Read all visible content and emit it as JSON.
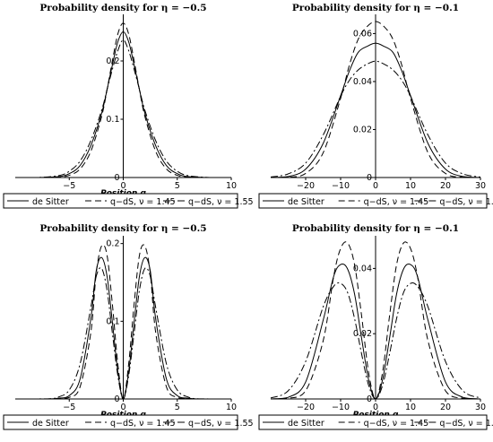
{
  "chart_data": [
    {
      "type": "line",
      "title": "Probability density for η = −0.5",
      "xlabel": "Position q",
      "xlim": [
        -10,
        10
      ],
      "ylim": [
        0,
        0.28
      ],
      "xticks": [
        "−5",
        "0",
        "5",
        "10"
      ],
      "xtick_values": [
        -5,
        0,
        5,
        10
      ],
      "yticks": [
        "0",
        "0.1",
        "0.2"
      ],
      "ytick_values": [
        0,
        0.1,
        0.2
      ],
      "series": [
        {
          "name": "de Sitter",
          "style": "solid",
          "x": [
            -10,
            -8,
            -6,
            -5,
            -4,
            -3,
            -2,
            -1.5,
            -1,
            -0.5,
            0,
            0.5,
            1,
            1.5,
            2,
            3,
            4,
            5,
            6,
            8,
            10
          ],
          "y": [
            0,
            0,
            0.0015,
            0.0066,
            0.0205,
            0.0548,
            0.1104,
            0.1508,
            0.1937,
            0.2329,
            0.25,
            0.2329,
            0.1937,
            0.1508,
            0.1104,
            0.0548,
            0.0205,
            0.0066,
            0.0015,
            0,
            0
          ]
        },
        {
          "name": "q−dS, ν = 1.45",
          "style": "dash",
          "x": [
            -10,
            -8,
            -6,
            -5,
            -4,
            -3,
            -2,
            -1.5,
            -1,
            -0.5,
            0,
            0.5,
            1,
            1.5,
            2,
            3,
            4,
            5,
            6,
            8,
            10
          ],
          "y": [
            0,
            0,
            0.0006,
            0.0037,
            0.0146,
            0.0451,
            0.1051,
            0.1505,
            0.2008,
            0.2463,
            0.265,
            0.2463,
            0.2008,
            0.1505,
            0.1051,
            0.0451,
            0.0146,
            0.0037,
            0.0006,
            0,
            0
          ]
        },
        {
          "name": "q−dS, ν = 1.55",
          "style": "dashdot",
          "x": [
            -10,
            -8,
            -6,
            -5,
            -4,
            -3,
            -2,
            -1.5,
            -1,
            -0.5,
            0,
            0.5,
            1,
            1.5,
            2,
            3,
            4,
            5,
            6,
            8,
            10
          ],
          "y": [
            0,
            0,
            0.0032,
            0.0107,
            0.0281,
            0.0633,
            0.1156,
            0.1509,
            0.186,
            0.2177,
            0.236,
            0.2177,
            0.186,
            0.1509,
            0.1156,
            0.0633,
            0.0281,
            0.0107,
            0.0032,
            0,
            0
          ]
        }
      ]
    },
    {
      "type": "line",
      "title": "Probability density for η = −0.1",
      "xlabel": "",
      "xlim": [
        -30,
        30
      ],
      "ylim": [
        0,
        0.068
      ],
      "xticks": [
        "−20",
        "−10",
        "0",
        "10",
        "20",
        "30"
      ],
      "xtick_values": [
        -20,
        -10,
        0,
        10,
        20,
        30
      ],
      "yticks": [
        "0",
        "0.02",
        "0.04",
        "0.06"
      ],
      "ytick_values": [
        0,
        0.02,
        0.04,
        0.06
      ],
      "series": [
        {
          "name": "de Sitter",
          "style": "solid",
          "x": [
            -30,
            -25,
            -20,
            -15,
            -10,
            -7.5,
            -5,
            -2.5,
            0,
            2.5,
            5,
            7.5,
            10,
            15,
            20,
            25,
            30
          ],
          "y": [
            0,
            0.0004,
            0.0035,
            0.0142,
            0.0341,
            0.0444,
            0.0521,
            0.0546,
            0.056,
            0.0546,
            0.0521,
            0.0444,
            0.0341,
            0.0142,
            0.0035,
            0.0004,
            0
          ]
        },
        {
          "name": "q−dS, ν = 1.45",
          "style": "dash",
          "x": [
            -30,
            -25,
            -20,
            -15,
            -10,
            -7.5,
            -5,
            -2.5,
            0,
            2.5,
            5,
            7.5,
            10,
            15,
            20,
            25,
            30
          ],
          "y": [
            0,
            0.0001,
            0.0017,
            0.0103,
            0.033,
            0.0468,
            0.0575,
            0.0628,
            0.065,
            0.0628,
            0.0575,
            0.0468,
            0.033,
            0.0103,
            0.0017,
            0.0001,
            0
          ]
        },
        {
          "name": "q−dS, ν = 1.55",
          "style": "dashdot",
          "x": [
            -30,
            -25,
            -20,
            -15,
            -10,
            -7.5,
            -5,
            -2.5,
            0,
            2.5,
            5,
            7.5,
            10,
            15,
            20,
            25,
            30
          ],
          "y": [
            0.0002,
            0.0015,
            0.006,
            0.0177,
            0.0339,
            0.0405,
            0.0448,
            0.0472,
            0.0485,
            0.0472,
            0.0448,
            0.0405,
            0.0339,
            0.0177,
            0.006,
            0.0015,
            0.0002
          ]
        }
      ]
    },
    {
      "type": "line",
      "title": "Probability density for η = −0.5",
      "xlabel": "Position q",
      "xlim": [
        -10,
        10
      ],
      "ylim": [
        0,
        0.21
      ],
      "xticks": [
        "−5",
        "0",
        "5",
        "10"
      ],
      "xtick_values": [
        -5,
        0,
        5,
        10
      ],
      "yticks": [
        "0",
        "0.1",
        "0.2"
      ],
      "ytick_values": [
        0,
        0.1,
        0.2
      ],
      "series": [
        {
          "name": "de Sitter",
          "style": "solid",
          "x": [
            -10,
            -7,
            -6,
            -5,
            -4,
            -3,
            -2.5,
            -2,
            -1.5,
            -1,
            -0.5,
            0,
            0.5,
            1,
            1.5,
            2,
            2.5,
            3,
            4,
            5,
            6,
            7,
            10
          ],
          "y": [
            0,
            0,
            0.001,
            0.0043,
            0.0255,
            0.1035,
            0.165,
            0.182,
            0.158,
            0.098,
            0.035,
            0,
            0.035,
            0.098,
            0.158,
            0.182,
            0.165,
            0.1035,
            0.0255,
            0.0043,
            0.001,
            0,
            0
          ]
        },
        {
          "name": "q−dS, ν = 1.45",
          "style": "dash",
          "x": [
            -10,
            -7,
            -6,
            -5,
            -4,
            -3,
            -2.5,
            -2,
            -1.5,
            -1,
            -0.5,
            0,
            0.5,
            1,
            1.5,
            2,
            2.5,
            3,
            4,
            5,
            6,
            7,
            10
          ],
          "y": [
            0,
            0,
            0.0004,
            0.002,
            0.0155,
            0.0857,
            0.162,
            0.197,
            0.185,
            0.121,
            0.045,
            0,
            0.045,
            0.121,
            0.185,
            0.197,
            0.162,
            0.0857,
            0.0155,
            0.002,
            0.0004,
            0,
            0
          ]
        },
        {
          "name": "q−dS, ν = 1.55",
          "style": "dashdot",
          "x": [
            -10,
            -7,
            -6,
            -5,
            -4,
            -3,
            -2.5,
            -2,
            -1.5,
            -1,
            -0.5,
            0,
            0.5,
            1,
            1.5,
            2,
            2.5,
            3,
            4,
            5,
            6,
            7,
            10
          ],
          "y": [
            0,
            0.0002,
            0.0025,
            0.0115,
            0.045,
            0.118,
            0.158,
            0.168,
            0.14,
            0.084,
            0.03,
            0,
            0.03,
            0.084,
            0.14,
            0.168,
            0.158,
            0.118,
            0.045,
            0.0115,
            0.0025,
            0.0002,
            0
          ]
        }
      ]
    },
    {
      "type": "line",
      "title": "Probability density for η = −0.1",
      "xlabel": "Position q",
      "xlim": [
        -30,
        30
      ],
      "ylim": [
        0,
        0.05
      ],
      "xticks": [
        "−20",
        "−10",
        "0",
        "10",
        "20",
        "30"
      ],
      "xtick_values": [
        -20,
        -10,
        0,
        10,
        20,
        30
      ],
      "yticks": [
        "0",
        "0.02",
        "0.04"
      ],
      "ytick_values": [
        0,
        0.02,
        0.04
      ],
      "series": [
        {
          "name": "de Sitter",
          "style": "solid",
          "x": [
            -30,
            -25,
            -20,
            -15,
            -12,
            -10,
            -8,
            -6,
            -4,
            -2,
            0,
            2,
            4,
            6,
            8,
            10,
            12,
            15,
            20,
            25,
            30
          ],
          "y": [
            0,
            0.0005,
            0.0052,
            0.0241,
            0.0375,
            0.0412,
            0.0398,
            0.0321,
            0.0186,
            0.0059,
            0,
            0.0059,
            0.0186,
            0.0321,
            0.0398,
            0.0412,
            0.0375,
            0.0241,
            0.0052,
            0.0005,
            0
          ]
        },
        {
          "name": "q−dS, ν = 1.45",
          "style": "dash",
          "x": [
            -30,
            -25,
            -20,
            -15,
            -12,
            -10,
            -8,
            -6,
            -4,
            -2,
            0,
            2,
            4,
            6,
            8,
            10,
            12,
            15,
            20,
            25,
            30
          ],
          "y": [
            0,
            0.0002,
            0.0025,
            0.0178,
            0.0375,
            0.0461,
            0.0478,
            0.0411,
            0.0255,
            0.0082,
            0,
            0.0082,
            0.0255,
            0.0411,
            0.0478,
            0.0461,
            0.0375,
            0.0178,
            0.0025,
            0.0002,
            0
          ]
        },
        {
          "name": "q−dS, ν = 1.55",
          "style": "dashdot",
          "x": [
            -30,
            -25,
            -20,
            -15,
            -12,
            -10,
            -8,
            -6,
            -4,
            -2,
            0,
            2,
            4,
            6,
            8,
            10,
            12,
            15,
            20,
            25,
            30
          ],
          "y": [
            0.0003,
            0.0025,
            0.0115,
            0.0282,
            0.0345,
            0.0354,
            0.0326,
            0.0246,
            0.0138,
            0.0042,
            0,
            0.0042,
            0.0138,
            0.0246,
            0.0326,
            0.0354,
            0.0345,
            0.0282,
            0.0115,
            0.0025,
            0.0003
          ]
        }
      ]
    }
  ]
}
